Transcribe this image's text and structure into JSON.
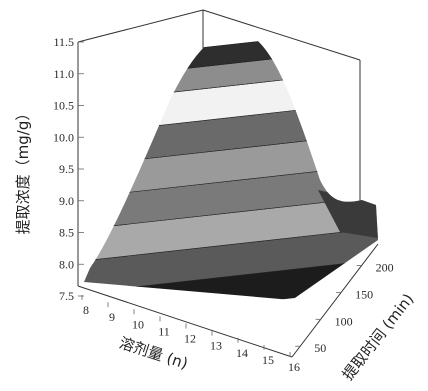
{
  "chart_data": {
    "type": "surface",
    "xlabel": "溶剂量 (n)",
    "ylabel": "提取时间 (min)",
    "zlabel": "提取浓度（mg/g）",
    "x_ticks": [
      "8",
      "9",
      "10",
      "11",
      "12",
      "13",
      "14",
      "15",
      "16"
    ],
    "y_ticks": [
      "50",
      "100",
      "150",
      "200"
    ],
    "z_ticks": [
      "7.5",
      "8.0",
      "8.5",
      "9.0",
      "9.5",
      "10.0",
      "10.5",
      "11.0",
      "11.5"
    ],
    "xlim": [
      8,
      16
    ],
    "ylim": [
      30,
      240
    ],
    "zlim": [
      7.5,
      11.5
    ],
    "peak": {
      "x": 12,
      "y": 135,
      "z": 11.5
    },
    "grid": false,
    "colormap": "grayscale bands"
  }
}
